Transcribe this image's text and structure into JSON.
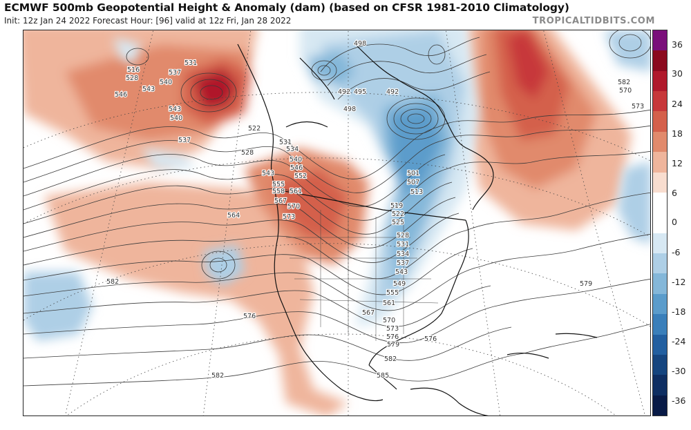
{
  "header": {
    "title": "ECMWF 500mb Geopotential Height & Anomaly (dam) (based on CFSR 1981-2010 Climatology)",
    "subtitle": "Init: 12z Jan 24 2022   Forecast Hour: [96]   valid at 12z Fri, Jan 28 2022",
    "brand": "TROPICALTIDBITS.COM"
  },
  "colorbar": {
    "labels": [
      "36",
      "30",
      "24",
      "18",
      "12",
      "6",
      "0",
      "-6",
      "-12",
      "-18",
      "-24",
      "-30",
      "-36"
    ],
    "colors": [
      "#7a0f7a",
      "#8b0a1e",
      "#b0192b",
      "#c7383a",
      "#d4604b",
      "#e18a6c",
      "#efb59c",
      "#f8ddcf",
      "#ffffff",
      "#ffffff",
      "#d7e8f3",
      "#aecfe6",
      "#84b7d9",
      "#5b9ccb",
      "#3a7fba",
      "#225fa0",
      "#15457f",
      "#0e2e62",
      "#081a46"
    ]
  },
  "map": {
    "contour_labels": [
      "498",
      "492",
      "495",
      "498",
      "492",
      "516",
      "528",
      "537",
      "531",
      "546",
      "543",
      "540",
      "543",
      "540",
      "537",
      "522",
      "528",
      "531",
      "534",
      "540",
      "546",
      "543",
      "552",
      "555",
      "558",
      "561",
      "567",
      "570",
      "573",
      "564",
      "501",
      "507",
      "513",
      "519",
      "522",
      "525",
      "528",
      "531",
      "534",
      "537",
      "543",
      "549",
      "555",
      "561",
      "567",
      "570",
      "573",
      "576",
      "579",
      "582",
      "585",
      "582",
      "582",
      "576",
      "582",
      "570",
      "573",
      "576",
      "579",
      "585"
    ]
  }
}
